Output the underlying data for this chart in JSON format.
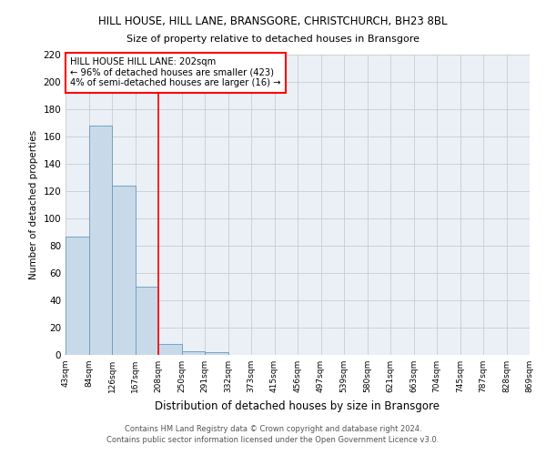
{
  "title": "HILL HOUSE, HILL LANE, BRANSGORE, CHRISTCHURCH, BH23 8BL",
  "subtitle": "Size of property relative to detached houses in Bransgore",
  "xlabel": "Distribution of detached houses by size in Bransgore",
  "ylabel": "Number of detached properties",
  "bin_labels": [
    "43sqm",
    "84sqm",
    "126sqm",
    "167sqm",
    "208sqm",
    "250sqm",
    "291sqm",
    "332sqm",
    "373sqm",
    "415sqm",
    "456sqm",
    "497sqm",
    "539sqm",
    "580sqm",
    "621sqm",
    "663sqm",
    "704sqm",
    "745sqm",
    "787sqm",
    "828sqm",
    "869sqm"
  ],
  "bar_heights": [
    87,
    168,
    124,
    50,
    8,
    3,
    2,
    0,
    0,
    0,
    0,
    0,
    0,
    0,
    0,
    0,
    0,
    0,
    0,
    0
  ],
  "bar_color": "#c8daea",
  "bar_edge_color": "#6699bb",
  "grid_color": "#cccccc",
  "background_color": "#eaf0f6",
  "red_line_x": 4,
  "annotation_text": "HILL HOUSE HILL LANE: 202sqm\n← 96% of detached houses are smaller (423)\n4% of semi-detached houses are larger (16) →",
  "footer_line1": "Contains HM Land Registry data © Crown copyright and database right 2024.",
  "footer_line2": "Contains public sector information licensed under the Open Government Licence v3.0.",
  "ylim": [
    0,
    220
  ],
  "yticks": [
    0,
    20,
    40,
    60,
    80,
    100,
    120,
    140,
    160,
    180,
    200,
    220
  ]
}
